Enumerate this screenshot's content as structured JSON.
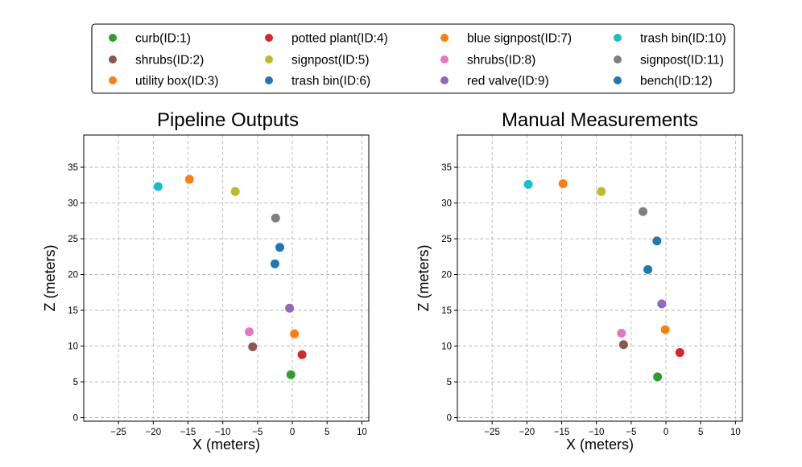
{
  "chart_data": [
    {
      "type": "scatter",
      "title": "Pipeline Outputs",
      "xlabel": "X (meters)",
      "ylabel": "Z (meters)",
      "xlim": [
        -30,
        11
      ],
      "ylim": [
        -0.5,
        39.5
      ],
      "xticks": [
        -25,
        -20,
        -15,
        -10,
        -5,
        0,
        5,
        10
      ],
      "yticks": [
        0,
        5,
        10,
        15,
        20,
        25,
        30,
        35
      ],
      "grid": true,
      "points": [
        {
          "id": 1,
          "label": "curb(ID:1)",
          "x": -0.2,
          "z": 6.0
        },
        {
          "id": 2,
          "label": "shrubs(ID:2)",
          "x": -5.7,
          "z": 9.9
        },
        {
          "id": 3,
          "label": "utility box(ID:3)",
          "x": 0.3,
          "z": 11.7
        },
        {
          "id": 4,
          "label": "potted plant(ID:4)",
          "x": 1.4,
          "z": 8.8
        },
        {
          "id": 5,
          "label": "signpost(ID:5)",
          "x": -8.2,
          "z": 31.6
        },
        {
          "id": 6,
          "label": "trash bin(ID:6)",
          "x": -1.8,
          "z": 23.8
        },
        {
          "id": 7,
          "label": "blue signpost(ID:7)",
          "x": -14.8,
          "z": 33.3
        },
        {
          "id": 8,
          "label": "shrubs(ID:8)",
          "x": -6.2,
          "z": 12.0
        },
        {
          "id": 9,
          "label": "red valve(ID:9)",
          "x": -0.4,
          "z": 15.3
        },
        {
          "id": 10,
          "label": "trash bin(ID:10)",
          "x": -19.3,
          "z": 32.3
        },
        {
          "id": 11,
          "label": "signpost(ID:11)",
          "x": -2.4,
          "z": 27.9
        },
        {
          "id": 12,
          "label": "bench(ID:12)",
          "x": -2.5,
          "z": 21.5
        }
      ]
    },
    {
      "type": "scatter",
      "title": "Manual Measurements",
      "xlabel": "X (meters)",
      "ylabel": "Z (meters)",
      "xlim": [
        -30,
        11
      ],
      "ylim": [
        -0.5,
        39.5
      ],
      "xticks": [
        -25,
        -20,
        -15,
        -10,
        -5,
        0,
        5,
        10
      ],
      "yticks": [
        0,
        5,
        10,
        15,
        20,
        25,
        30,
        35
      ],
      "grid": true,
      "points": [
        {
          "id": 1,
          "label": "curb(ID:1)",
          "x": -1.2,
          "z": 5.7
        },
        {
          "id": 2,
          "label": "shrubs(ID:2)",
          "x": -6.1,
          "z": 10.2
        },
        {
          "id": 3,
          "label": "utility box(ID:3)",
          "x": -0.1,
          "z": 12.3
        },
        {
          "id": 4,
          "label": "potted plant(ID:4)",
          "x": 2.0,
          "z": 9.1
        },
        {
          "id": 5,
          "label": "signpost(ID:5)",
          "x": -9.3,
          "z": 31.6
        },
        {
          "id": 6,
          "label": "trash bin(ID:6)",
          "x": -2.6,
          "z": 20.7
        },
        {
          "id": 7,
          "label": "blue signpost(ID:7)",
          "x": -14.8,
          "z": 32.7
        },
        {
          "id": 8,
          "label": "shrubs(ID:8)",
          "x": -6.4,
          "z": 11.8
        },
        {
          "id": 9,
          "label": "red valve(ID:9)",
          "x": -0.6,
          "z": 15.9
        },
        {
          "id": 10,
          "label": "trash bin(ID:10)",
          "x": -19.8,
          "z": 32.6
        },
        {
          "id": 11,
          "label": "signpost(ID:11)",
          "x": -3.3,
          "z": 28.8
        },
        {
          "id": 12,
          "label": "bench(ID:12)",
          "x": -1.3,
          "z": 24.7
        }
      ]
    }
  ],
  "legend": [
    {
      "id": 1,
      "label": "curb(ID:1)",
      "color": "#2ca02c"
    },
    {
      "id": 2,
      "label": "shrubs(ID:2)",
      "color": "#8c564b"
    },
    {
      "id": 3,
      "label": "utility box(ID:3)",
      "color": "#ff7f0e"
    },
    {
      "id": 4,
      "label": "potted plant(ID:4)",
      "color": "#d62728"
    },
    {
      "id": 5,
      "label": "signpost(ID:5)",
      "color": "#bcbd22"
    },
    {
      "id": 6,
      "label": "trash bin(ID:6)",
      "color": "#1f77b4"
    },
    {
      "id": 7,
      "label": "blue signpost(ID:7)",
      "color": "#ff7f0e"
    },
    {
      "id": 8,
      "label": "shrubs(ID:8)",
      "color": "#e377c2"
    },
    {
      "id": 9,
      "label": "red valve(ID:9)",
      "color": "#9467bd"
    },
    {
      "id": 10,
      "label": "trash bin(ID:10)",
      "color": "#17becf"
    },
    {
      "id": 11,
      "label": "signpost(ID:11)",
      "color": "#7f7f7f"
    },
    {
      "id": 12,
      "label": "bench(ID:12)",
      "color": "#1f77b4"
    }
  ]
}
